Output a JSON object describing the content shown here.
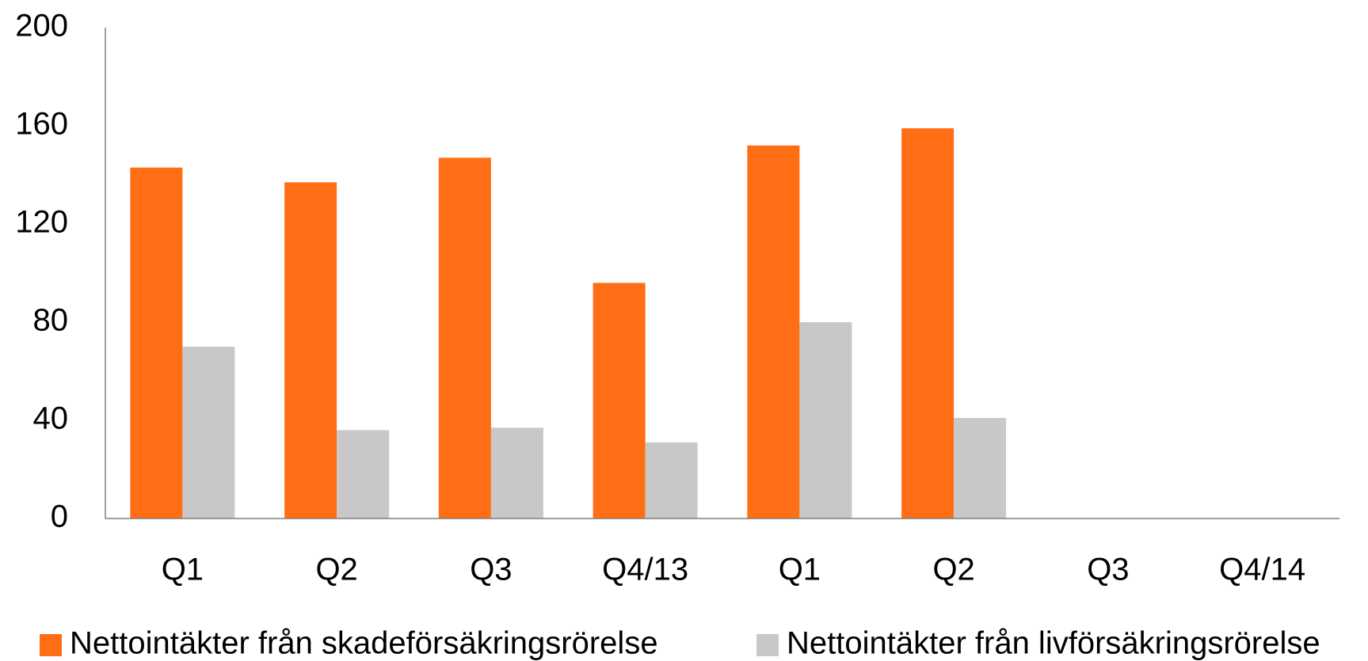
{
  "chart_data": {
    "type": "bar",
    "categories": [
      "Q1",
      "Q2",
      "Q3",
      "Q4/13",
      "Q1",
      "Q2",
      "Q3",
      "Q4/14"
    ],
    "series": [
      {
        "name": "Nettointäkter från skadeförsäkringsrörelse",
        "color": "#ff6d14",
        "values": [
          143,
          137,
          147,
          96,
          152,
          159,
          null,
          null
        ]
      },
      {
        "name": "Nettointäkter från livförsäkringsrörelse",
        "color": "#c8c8c8",
        "values": [
          70,
          36,
          37,
          31,
          80,
          41,
          null,
          null
        ]
      }
    ],
    "ylim": [
      0,
      200
    ],
    "yticks": [
      0,
      40,
      80,
      120,
      160,
      200
    ],
    "grid": false,
    "legend": "bottom"
  }
}
